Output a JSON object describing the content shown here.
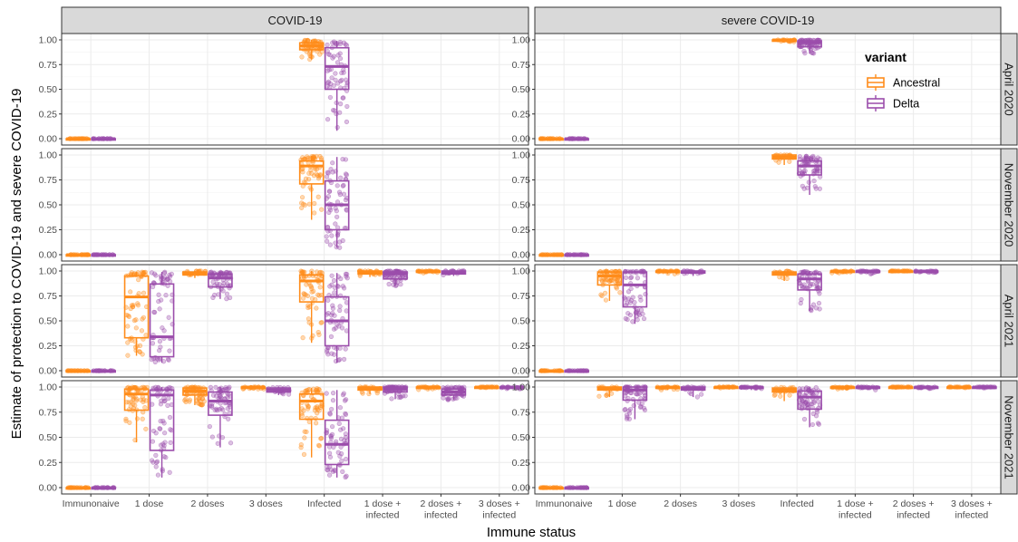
{
  "chart_data": {
    "type": "box",
    "ylabel": "Estimate of protection to COVID-19 and severe COVID-19",
    "xlabel": "Immune status",
    "ylim": [
      0,
      1
    ],
    "yticks": [
      "0.00",
      "0.25",
      "0.50",
      "0.75",
      "1.00"
    ],
    "column_facets": [
      "COVID-19",
      "severe COVID-19"
    ],
    "row_facets": [
      "April 2020",
      "November 2020",
      "April 2021",
      "November 2021"
    ],
    "categories": [
      "Immunonaive",
      "1 dose",
      "2 doses",
      "3 doses",
      "Infected",
      "1 dose +\ninfected",
      "2 doses +\ninfected",
      "3 doses +\ninfected"
    ],
    "legend": {
      "title": "variant",
      "position": "top-right",
      "entries": [
        "Ancestral",
        "Delta"
      ]
    },
    "colors": {
      "Ancestral": "#ff8c1a",
      "Delta": "#9b4dab"
    },
    "grid": true,
    "panels": [
      {
        "row": "April 2020",
        "col": "COVID-19",
        "boxes": [
          {
            "category": "Immunonaive",
            "variant": "Ancestral",
            "q1": 0,
            "median": 0,
            "q3": 0,
            "wlo": 0,
            "whi": 0
          },
          {
            "category": "Immunonaive",
            "variant": "Delta",
            "q1": 0,
            "median": 0,
            "q3": 0,
            "wlo": 0,
            "whi": 0
          },
          {
            "category": "Infected",
            "variant": "Ancestral",
            "q1": 0.9,
            "median": 0.94,
            "q3": 0.97,
            "wlo": 0.8,
            "whi": 1.0
          },
          {
            "category": "Infected",
            "variant": "Delta",
            "q1": 0.5,
            "median": 0.73,
            "q3": 0.92,
            "wlo": 0.08,
            "whi": 0.99
          }
        ]
      },
      {
        "row": "April 2020",
        "col": "severe COVID-19",
        "boxes": [
          {
            "category": "Immunonaive",
            "variant": "Ancestral",
            "q1": 0,
            "median": 0,
            "q3": 0,
            "wlo": 0,
            "whi": 0
          },
          {
            "category": "Immunonaive",
            "variant": "Delta",
            "q1": 0,
            "median": 0,
            "q3": 0,
            "wlo": 0,
            "whi": 0
          },
          {
            "category": "Infected",
            "variant": "Ancestral",
            "q1": 0.99,
            "median": 1.0,
            "q3": 1.0,
            "wlo": 0.98,
            "whi": 1.0
          },
          {
            "category": "Infected",
            "variant": "Delta",
            "q1": 0.93,
            "median": 0.97,
            "q3": 0.99,
            "wlo": 0.86,
            "whi": 1.0
          }
        ]
      },
      {
        "row": "November 2020",
        "col": "COVID-19",
        "boxes": [
          {
            "category": "Immunonaive",
            "variant": "Ancestral",
            "q1": 0,
            "median": 0,
            "q3": 0,
            "wlo": 0,
            "whi": 0
          },
          {
            "category": "Immunonaive",
            "variant": "Delta",
            "q1": 0,
            "median": 0,
            "q3": 0,
            "wlo": 0,
            "whi": 0
          },
          {
            "category": "Infected",
            "variant": "Ancestral",
            "q1": 0.71,
            "median": 0.89,
            "q3": 0.94,
            "wlo": 0.35,
            "whi": 0.99
          },
          {
            "category": "Infected",
            "variant": "Delta",
            "q1": 0.25,
            "median": 0.5,
            "q3": 0.74,
            "wlo": 0.07,
            "whi": 0.98
          }
        ]
      },
      {
        "row": "November 2020",
        "col": "severe COVID-19",
        "boxes": [
          {
            "category": "Immunonaive",
            "variant": "Ancestral",
            "q1": 0,
            "median": 0,
            "q3": 0,
            "wlo": 0,
            "whi": 0
          },
          {
            "category": "Immunonaive",
            "variant": "Delta",
            "q1": 0,
            "median": 0,
            "q3": 0,
            "wlo": 0,
            "whi": 0
          },
          {
            "category": "Infected",
            "variant": "Ancestral",
            "q1": 0.96,
            "median": 0.98,
            "q3": 1.0,
            "wlo": 0.9,
            "whi": 1.0
          },
          {
            "category": "Infected",
            "variant": "Delta",
            "q1": 0.8,
            "median": 0.89,
            "q3": 0.94,
            "wlo": 0.6,
            "whi": 0.99
          }
        ]
      },
      {
        "row": "April 2021",
        "col": "COVID-19",
        "boxes": [
          {
            "category": "Immunonaive",
            "variant": "Ancestral",
            "q1": 0,
            "median": 0,
            "q3": 0,
            "wlo": 0,
            "whi": 0
          },
          {
            "category": "Immunonaive",
            "variant": "Delta",
            "q1": 0,
            "median": 0,
            "q3": 0,
            "wlo": 0,
            "whi": 0
          },
          {
            "category": "1 dose",
            "variant": "Ancestral",
            "q1": 0.33,
            "median": 0.74,
            "q3": 0.95,
            "wlo": 0.15,
            "whi": 0.99
          },
          {
            "category": "1 dose",
            "variant": "Delta",
            "q1": 0.14,
            "median": 0.34,
            "q3": 0.87,
            "wlo": 0.08,
            "whi": 0.99
          },
          {
            "category": "2 doses",
            "variant": "Ancestral",
            "q1": 0.96,
            "median": 0.98,
            "q3": 0.99,
            "wlo": 0.93,
            "whi": 1.0
          },
          {
            "category": "2 doses",
            "variant": "Delta",
            "q1": 0.84,
            "median": 0.93,
            "q3": 0.97,
            "wlo": 0.72,
            "whi": 0.99
          },
          {
            "category": "Infected",
            "variant": "Ancestral",
            "q1": 0.69,
            "median": 0.9,
            "q3": 0.96,
            "wlo": 0.28,
            "whi": 1.0
          },
          {
            "category": "Infected",
            "variant": "Delta",
            "q1": 0.25,
            "median": 0.5,
            "q3": 0.74,
            "wlo": 0.08,
            "whi": 0.98
          },
          {
            "category": "1 dose +\ninfected",
            "variant": "Ancestral",
            "q1": 0.97,
            "median": 0.99,
            "q3": 1.0,
            "wlo": 0.94,
            "whi": 1.0
          },
          {
            "category": "1 dose +\ninfected",
            "variant": "Delta",
            "q1": 0.92,
            "median": 0.97,
            "q3": 0.99,
            "wlo": 0.85,
            "whi": 1.0
          },
          {
            "category": "2 doses +\ninfected",
            "variant": "Ancestral",
            "q1": 0.99,
            "median": 1.0,
            "q3": 1.0,
            "wlo": 0.98,
            "whi": 1.0
          },
          {
            "category": "2 doses +\ninfected",
            "variant": "Delta",
            "q1": 0.97,
            "median": 0.99,
            "q3": 1.0,
            "wlo": 0.95,
            "whi": 1.0
          }
        ]
      },
      {
        "row": "April 2021",
        "col": "severe COVID-19",
        "boxes": [
          {
            "category": "Immunonaive",
            "variant": "Ancestral",
            "q1": 0,
            "median": 0,
            "q3": 0,
            "wlo": 0,
            "whi": 0
          },
          {
            "category": "Immunonaive",
            "variant": "Delta",
            "q1": 0,
            "median": 0,
            "q3": 0,
            "wlo": 0,
            "whi": 0
          },
          {
            "category": "1 dose",
            "variant": "Ancestral",
            "q1": 0.86,
            "median": 0.95,
            "q3": 0.99,
            "wlo": 0.7,
            "whi": 1.0
          },
          {
            "category": "1 dose",
            "variant": "Delta",
            "q1": 0.64,
            "median": 0.86,
            "q3": 0.99,
            "wlo": 0.47,
            "whi": 1.0
          },
          {
            "category": "2 doses",
            "variant": "Ancestral",
            "q1": 0.99,
            "median": 1.0,
            "q3": 1.0,
            "wlo": 0.97,
            "whi": 1.0
          },
          {
            "category": "2 doses",
            "variant": "Delta",
            "q1": 0.98,
            "median": 0.99,
            "q3": 1.0,
            "wlo": 0.95,
            "whi": 1.0
          },
          {
            "category": "Infected",
            "variant": "Ancestral",
            "q1": 0.96,
            "median": 0.98,
            "q3": 0.99,
            "wlo": 0.9,
            "whi": 1.0
          },
          {
            "category": "Infected",
            "variant": "Delta",
            "q1": 0.81,
            "median": 0.92,
            "q3": 0.97,
            "wlo": 0.6,
            "whi": 1.0
          },
          {
            "category": "1 dose +\ninfected",
            "variant": "Ancestral",
            "q1": 0.99,
            "median": 1.0,
            "q3": 1.0,
            "wlo": 0.98,
            "whi": 1.0
          },
          {
            "category": "1 dose +\ninfected",
            "variant": "Delta",
            "q1": 0.99,
            "median": 1.0,
            "q3": 1.0,
            "wlo": 0.97,
            "whi": 1.0
          },
          {
            "category": "2 doses +\ninfected",
            "variant": "Ancestral",
            "q1": 1.0,
            "median": 1.0,
            "q3": 1.0,
            "wlo": 0.99,
            "whi": 1.0
          },
          {
            "category": "2 doses +\ninfected",
            "variant": "Delta",
            "q1": 0.99,
            "median": 1.0,
            "q3": 1.0,
            "wlo": 0.98,
            "whi": 1.0
          }
        ]
      },
      {
        "row": "November 2021",
        "col": "COVID-19",
        "boxes": [
          {
            "category": "Immunonaive",
            "variant": "Ancestral",
            "q1": 0,
            "median": 0,
            "q3": 0,
            "wlo": 0,
            "whi": 0
          },
          {
            "category": "Immunonaive",
            "variant": "Delta",
            "q1": 0,
            "median": 0,
            "q3": 0,
            "wlo": 0,
            "whi": 0
          },
          {
            "category": "1 dose",
            "variant": "Ancestral",
            "q1": 0.77,
            "median": 0.93,
            "q3": 0.98,
            "wlo": 0.45,
            "whi": 1.0
          },
          {
            "category": "1 dose",
            "variant": "Delta",
            "q1": 0.37,
            "median": 0.92,
            "q3": 0.97,
            "wlo": 0.1,
            "whi": 1.0
          },
          {
            "category": "2 doses",
            "variant": "Ancestral",
            "q1": 0.92,
            "median": 0.96,
            "q3": 0.99,
            "wlo": 0.82,
            "whi": 1.0
          },
          {
            "category": "2 doses",
            "variant": "Delta",
            "q1": 0.72,
            "median": 0.86,
            "q3": 0.95,
            "wlo": 0.4,
            "whi": 1.0
          },
          {
            "category": "3 doses",
            "variant": "Ancestral",
            "q1": 0.99,
            "median": 1.0,
            "q3": 1.0,
            "wlo": 0.98,
            "whi": 1.0
          },
          {
            "category": "3 doses",
            "variant": "Delta",
            "q1": 0.95,
            "median": 0.97,
            "q3": 0.99,
            "wlo": 0.92,
            "whi": 1.0
          },
          {
            "category": "Infected",
            "variant": "Ancestral",
            "q1": 0.68,
            "median": 0.86,
            "q3": 0.93,
            "wlo": 0.3,
            "whi": 0.99
          },
          {
            "category": "Infected",
            "variant": "Delta",
            "q1": 0.23,
            "median": 0.43,
            "q3": 0.67,
            "wlo": 0.1,
            "whi": 0.97
          },
          {
            "category": "1 dose +\ninfected",
            "variant": "Ancestral",
            "q1": 0.97,
            "median": 0.99,
            "q3": 1.0,
            "wlo": 0.93,
            "whi": 1.0
          },
          {
            "category": "1 dose +\ninfected",
            "variant": "Delta",
            "q1": 0.95,
            "median": 0.98,
            "q3": 1.0,
            "wlo": 0.88,
            "whi": 1.0
          },
          {
            "category": "2 doses +\ninfected",
            "variant": "Ancestral",
            "q1": 0.99,
            "median": 1.0,
            "q3": 1.0,
            "wlo": 0.97,
            "whi": 1.0
          },
          {
            "category": "2 doses +\ninfected",
            "variant": "Delta",
            "q1": 0.92,
            "median": 0.95,
            "q3": 0.98,
            "wlo": 0.87,
            "whi": 1.0
          },
          {
            "category": "3 doses +\ninfected",
            "variant": "Ancestral",
            "q1": 1.0,
            "median": 1.0,
            "q3": 1.0,
            "wlo": 0.99,
            "whi": 1.0
          },
          {
            "category": "3 doses +\ninfected",
            "variant": "Delta",
            "q1": 0.99,
            "median": 1.0,
            "q3": 1.0,
            "wlo": 0.98,
            "whi": 1.0
          }
        ]
      },
      {
        "row": "November 2021",
        "col": "severe COVID-19",
        "boxes": [
          {
            "category": "Immunonaive",
            "variant": "Ancestral",
            "q1": 0,
            "median": 0,
            "q3": 0,
            "wlo": 0,
            "whi": 0
          },
          {
            "category": "Immunonaive",
            "variant": "Delta",
            "q1": 0,
            "median": 0,
            "q3": 0,
            "wlo": 0,
            "whi": 0
          },
          {
            "category": "1 dose",
            "variant": "Ancestral",
            "q1": 0.97,
            "median": 0.99,
            "q3": 1.0,
            "wlo": 0.9,
            "whi": 1.0
          },
          {
            "category": "1 dose",
            "variant": "Delta",
            "q1": 0.87,
            "median": 0.97,
            "q3": 1.0,
            "wlo": 0.68,
            "whi": 1.0
          },
          {
            "category": "2 doses",
            "variant": "Ancestral",
            "q1": 0.99,
            "median": 1.0,
            "q3": 1.0,
            "wlo": 0.97,
            "whi": 1.0
          },
          {
            "category": "2 doses",
            "variant": "Delta",
            "q1": 0.97,
            "median": 0.99,
            "q3": 1.0,
            "wlo": 0.9,
            "whi": 1.0
          },
          {
            "category": "3 doses",
            "variant": "Ancestral",
            "q1": 1.0,
            "median": 1.0,
            "q3": 1.0,
            "wlo": 0.99,
            "whi": 1.0
          },
          {
            "category": "3 doses",
            "variant": "Delta",
            "q1": 0.99,
            "median": 1.0,
            "q3": 1.0,
            "wlo": 0.97,
            "whi": 1.0
          },
          {
            "category": "Infected",
            "variant": "Ancestral",
            "q1": 0.95,
            "median": 0.97,
            "q3": 0.99,
            "wlo": 0.86,
            "whi": 1.0
          },
          {
            "category": "Infected",
            "variant": "Delta",
            "q1": 0.78,
            "median": 0.9,
            "q3": 0.96,
            "wlo": 0.6,
            "whi": 1.0
          },
          {
            "category": "1 dose +\ninfected",
            "variant": "Ancestral",
            "q1": 0.99,
            "median": 1.0,
            "q3": 1.0,
            "wlo": 0.98,
            "whi": 1.0
          },
          {
            "category": "1 dose +\ninfected",
            "variant": "Delta",
            "q1": 0.99,
            "median": 1.0,
            "q3": 1.0,
            "wlo": 0.97,
            "whi": 1.0
          },
          {
            "category": "2 doses +\ninfected",
            "variant": "Ancestral",
            "q1": 1.0,
            "median": 1.0,
            "q3": 1.0,
            "wlo": 0.99,
            "whi": 1.0
          },
          {
            "category": "2 doses +\ninfected",
            "variant": "Delta",
            "q1": 0.99,
            "median": 1.0,
            "q3": 1.0,
            "wlo": 0.98,
            "whi": 1.0
          },
          {
            "category": "3 doses +\ninfected",
            "variant": "Ancestral",
            "q1": 1.0,
            "median": 1.0,
            "q3": 1.0,
            "wlo": 0.99,
            "whi": 1.0
          },
          {
            "category": "3 doses +\ninfected",
            "variant": "Delta",
            "q1": 1.0,
            "median": 1.0,
            "q3": 1.0,
            "wlo": 0.99,
            "whi": 1.0
          }
        ]
      }
    ]
  }
}
